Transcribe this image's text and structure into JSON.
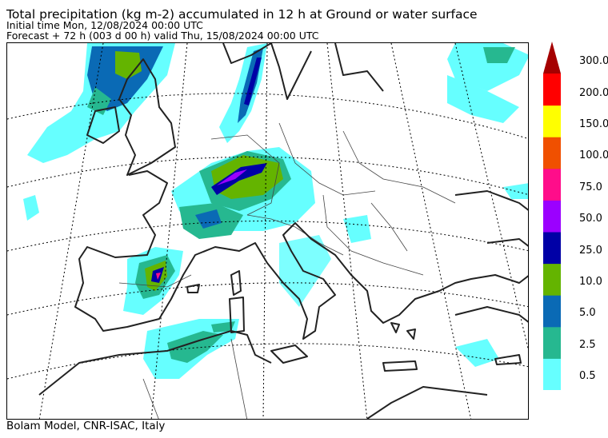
{
  "title": "Total precipitation (kg m-2) accumulated in  12 h at Ground or water surface",
  "initial_time": "Initial time  Mon, 12/08/2024  00:00 UTC",
  "forecast": "Forecast  +  72 h  (003 d 00 h)  valid Thu, 15/08/2024 00:00 UTC",
  "credit": "Bolam Model, CNR-ISAC, Italy",
  "legend": {
    "levels": [
      "0.5",
      "2.5",
      "5.0",
      "10.0",
      "25.0",
      "50.0",
      "75.0",
      "100.0",
      "150.0",
      "200.0",
      "300.0"
    ],
    "colors": [
      "#66ffff",
      "#26b890",
      "#0a6ab5",
      "#64b400",
      "#0000a6",
      "#9b00ff",
      "#ff0d8a",
      "#f05000",
      "#ffff00",
      "#ff0000",
      "#a50000"
    ]
  }
}
